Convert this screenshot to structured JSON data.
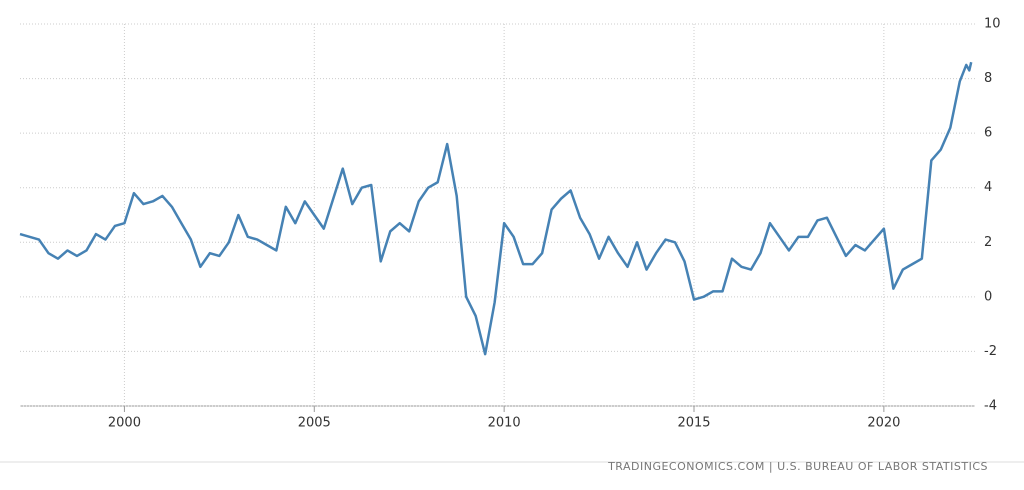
{
  "chart_data": {
    "type": "line",
    "source": "TRADINGECONOMICS.COM | U.S. BUREAU OF LABOR STATISTICS",
    "color": "#4682b4",
    "x": [
      1997.25,
      1997.5,
      1997.75,
      1998.0,
      1998.25,
      1998.5,
      1998.75,
      1999.0,
      1999.25,
      1999.5,
      1999.75,
      2000.0,
      2000.25,
      2000.5,
      2000.75,
      2001.0,
      2001.25,
      2001.5,
      2001.75,
      2002.0,
      2002.25,
      2002.5,
      2002.75,
      2003.0,
      2003.25,
      2003.5,
      2003.75,
      2004.0,
      2004.25,
      2004.5,
      2004.75,
      2005.0,
      2005.25,
      2005.5,
      2005.75,
      2006.0,
      2006.25,
      2006.5,
      2006.75,
      2007.0,
      2007.25,
      2007.5,
      2007.75,
      2008.0,
      2008.25,
      2008.5,
      2008.75,
      2009.0,
      2009.25,
      2009.5,
      2009.75,
      2010.0,
      2010.25,
      2010.5,
      2010.75,
      2011.0,
      2011.25,
      2011.5,
      2011.75,
      2012.0,
      2012.25,
      2012.5,
      2012.75,
      2013.0,
      2013.25,
      2013.5,
      2013.75,
      2014.0,
      2014.25,
      2014.5,
      2014.75,
      2015.0,
      2015.25,
      2015.5,
      2015.75,
      2016.0,
      2016.25,
      2016.5,
      2016.75,
      2017.0,
      2017.25,
      2017.5,
      2017.75,
      2018.0,
      2018.25,
      2018.5,
      2018.75,
      2019.0,
      2019.25,
      2019.5,
      2019.75,
      2020.0,
      2020.25,
      2020.5,
      2020.75,
      2021.0,
      2021.25,
      2021.5,
      2021.75,
      2022.0,
      2022.17,
      2022.25,
      2022.3
    ],
    "values": [
      2.3,
      2.2,
      2.1,
      1.6,
      1.4,
      1.7,
      1.5,
      1.7,
      2.3,
      2.1,
      2.6,
      2.7,
      3.8,
      3.4,
      3.5,
      3.7,
      3.3,
      2.7,
      2.1,
      1.1,
      1.6,
      1.5,
      2.0,
      3.0,
      2.2,
      2.1,
      1.9,
      1.7,
      3.3,
      2.7,
      3.5,
      3.0,
      2.5,
      3.6,
      4.7,
      3.4,
      4.0,
      4.1,
      1.3,
      2.4,
      2.7,
      2.4,
      3.5,
      4.0,
      4.2,
      5.6,
      3.7,
      0.0,
      -0.7,
      -2.1,
      -0.2,
      2.7,
      2.2,
      1.2,
      1.2,
      1.6,
      3.2,
      3.6,
      3.9,
      2.9,
      2.3,
      1.4,
      2.2,
      1.6,
      1.1,
      2.0,
      1.0,
      1.6,
      2.1,
      2.0,
      1.3,
      -0.1,
      0.0,
      0.2,
      0.2,
      1.4,
      1.1,
      1.0,
      1.6,
      2.7,
      2.2,
      1.7,
      2.2,
      2.2,
      2.8,
      2.9,
      2.2,
      1.5,
      1.9,
      1.7,
      2.1,
      2.5,
      0.3,
      1.0,
      1.2,
      1.4,
      5.0,
      5.4,
      6.2,
      7.9,
      8.5,
      8.3,
      8.6
    ],
    "xlim": [
      1997.25,
      2022.4
    ],
    "xticks": [
      2000,
      2005,
      2010,
      2015,
      2020
    ],
    "ylim": [
      -4,
      10
    ],
    "yticks": [
      -4,
      -2,
      0,
      2,
      4,
      6,
      8,
      10
    ],
    "grid": true
  }
}
